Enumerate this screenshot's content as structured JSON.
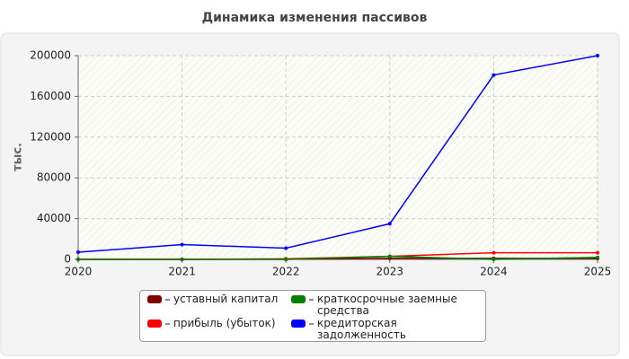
{
  "chart_data": {
    "type": "line",
    "title": "Динамика изменения пассивов",
    "y_label": "тыс.",
    "x": [
      2020,
      2021,
      2022,
      2023,
      2024,
      2025
    ],
    "xlim": [
      2020,
      2025
    ],
    "xticks": [
      2020,
      2021,
      2022,
      2023,
      2024,
      2025
    ],
    "ylim": [
      0,
      200000
    ],
    "yticks": [
      0,
      40000,
      80000,
      120000,
      160000,
      200000
    ],
    "grid": true,
    "series": [
      {
        "name": "уставный капитал",
        "color": "#800000",
        "values": [
          100,
          100,
          100,
          1000,
          1000,
          1000
        ]
      },
      {
        "name": "прибыль (убыток)",
        "color": "#ff0000",
        "values": [
          0,
          0,
          500,
          3000,
          6500,
          6500
        ]
      },
      {
        "name": "краткосрочные заемные средства",
        "color": "#008000",
        "values": [
          0,
          0,
          0,
          3000,
          0,
          2000
        ]
      },
      {
        "name": "кредиторская задолженность",
        "color": "#0000ff",
        "values": [
          7000,
          14500,
          11000,
          35000,
          181000,
          200000
        ]
      }
    ]
  }
}
